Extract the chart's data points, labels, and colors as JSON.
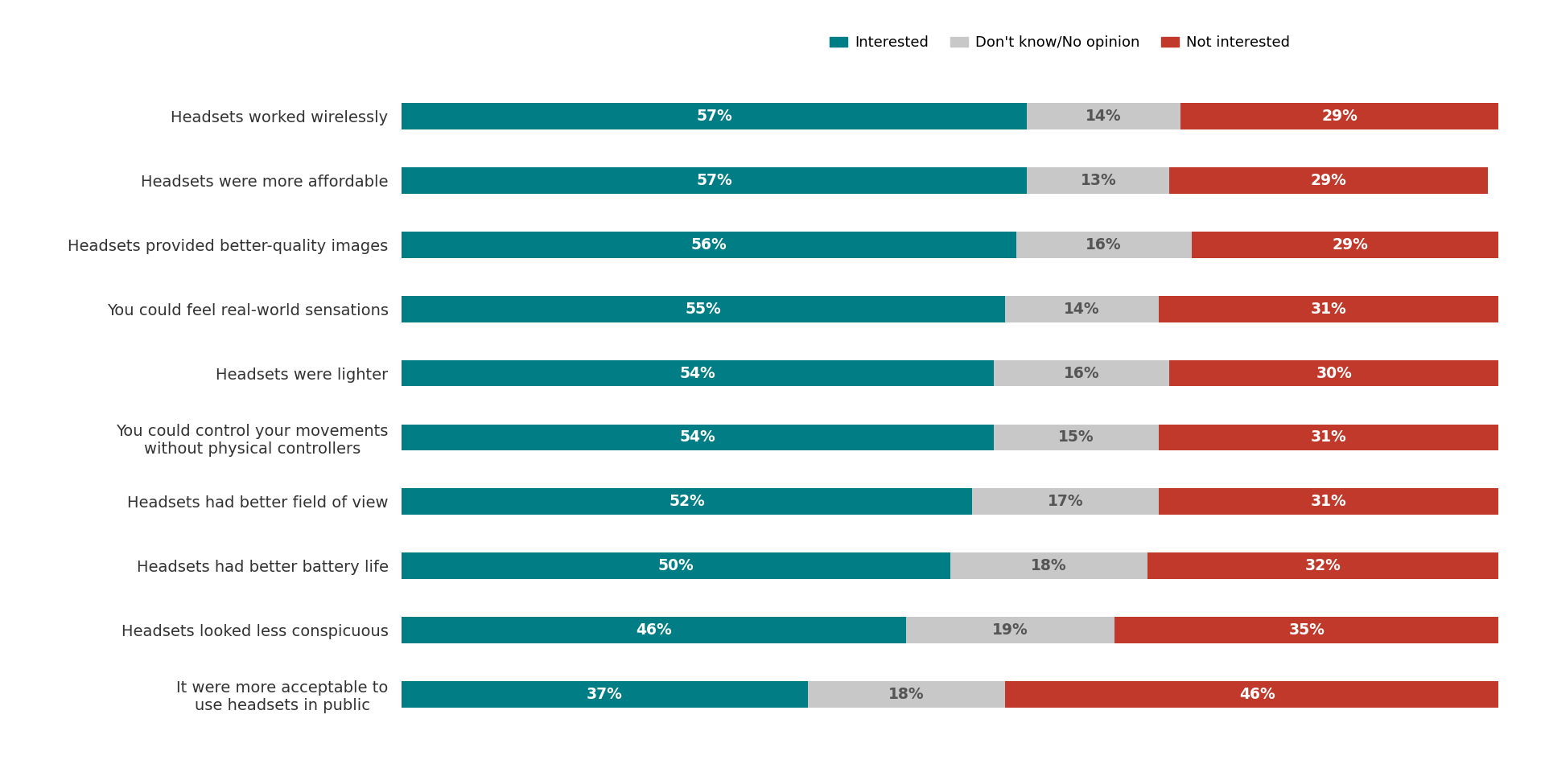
{
  "categories": [
    "Headsets worked wirelessly",
    "Headsets were more affordable",
    "Headsets provided better-quality images",
    "You could feel real-world sensations",
    "Headsets were lighter",
    "You could control your movements\nwithout physical controllers",
    "Headsets had better field of view",
    "Headsets had better battery life",
    "Headsets looked less conspicuous",
    "It were more acceptable to\nuse headsets in public"
  ],
  "interested": [
    57,
    57,
    56,
    55,
    54,
    54,
    52,
    50,
    46,
    37
  ],
  "dont_know": [
    14,
    13,
    16,
    14,
    16,
    15,
    17,
    18,
    19,
    18
  ],
  "not_interested": [
    29,
    29,
    29,
    31,
    30,
    31,
    31,
    32,
    35,
    46
  ],
  "color_interested": "#007d85",
  "color_dont_know": "#c8c8c8",
  "color_not_interested": "#c0392b",
  "legend_labels": [
    "Interested",
    "Don't know/No opinion",
    "Not interested"
  ],
  "bar_height": 0.45,
  "background_color": "#ffffff",
  "text_color_bar": "#ffffff",
  "text_color_dontknow": "#555555",
  "label_fontsize": 14,
  "tick_fontsize": 14,
  "legend_fontsize": 13,
  "value_fontsize": 13.5
}
